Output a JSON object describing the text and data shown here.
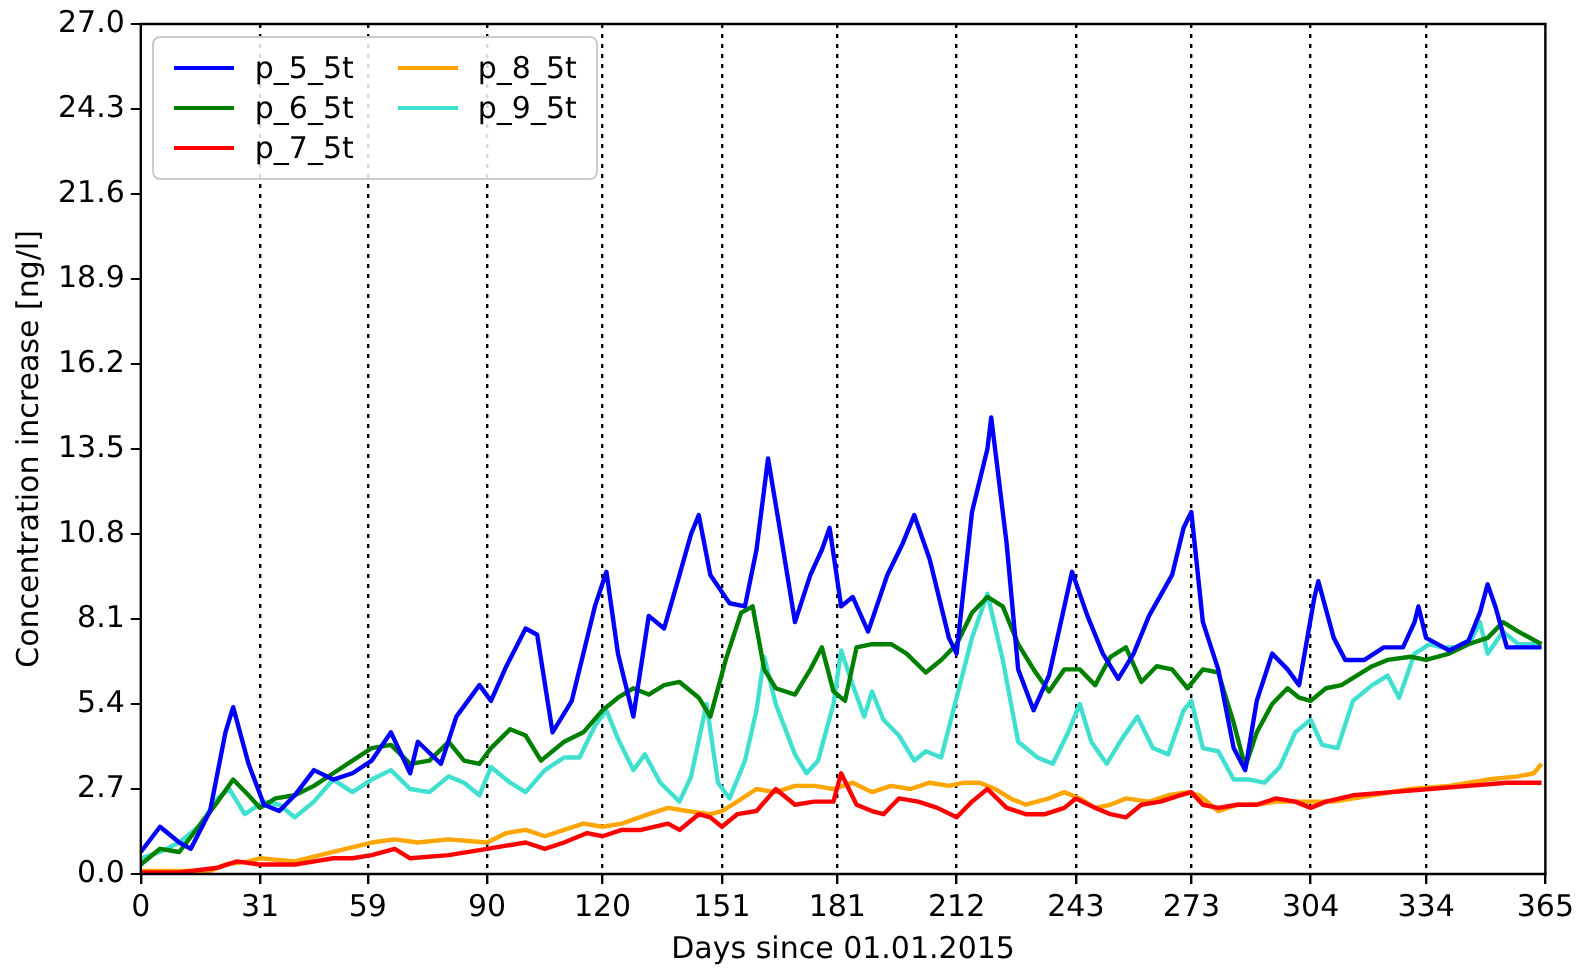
{
  "chart_data": {
    "type": "line",
    "xlabel": "Days since 01.01.2015",
    "ylabel": "Concentration increase [ng/l]",
    "xlim": [
      0,
      365
    ],
    "xticks": [
      0,
      31,
      59,
      90,
      120,
      151,
      181,
      212,
      243,
      273,
      304,
      334,
      365
    ],
    "ylim": [
      0,
      27
    ],
    "yticks": [
      {
        "value": 0,
        "label": "0.0"
      },
      {
        "value": 2.7,
        "label": "2.7"
      },
      {
        "value": 5.4,
        "label": "5.4"
      },
      {
        "value": 8.1,
        "label": "8.1"
      },
      {
        "value": 10.8,
        "label": "10.8"
      },
      {
        "value": 13.5,
        "label": "13.5"
      },
      {
        "value": 16.2,
        "label": "16.2"
      },
      {
        "value": 18.9,
        "label": "18.9"
      },
      {
        "value": 21.6,
        "label": "21.6"
      },
      {
        "value": 24.3,
        "label": "24.3"
      },
      {
        "value": 27,
        "label": "27.0"
      }
    ],
    "grid": "x",
    "legend": "top left",
    "marker": "none",
    "line_style": "solid",
    "series": [
      {
        "name": "p_5_5t",
        "color": "#0000ff",
        "x": [
          0,
          5,
          10,
          13,
          18,
          22,
          24,
          28,
          32,
          36,
          40,
          45,
          50,
          55,
          60,
          65,
          70,
          72,
          78,
          82,
          88,
          91,
          95,
          100,
          103,
          107,
          112,
          118,
          121,
          124,
          128,
          132,
          136,
          140,
          143,
          145,
          148,
          153,
          157,
          160,
          163,
          166,
          170,
          174,
          177,
          179,
          182,
          185,
          189,
          194,
          198,
          201,
          205,
          210,
          212,
          216,
          220,
          221,
          225,
          228,
          232,
          236,
          240,
          242,
          246,
          250,
          254,
          258,
          262,
          268,
          271,
          273,
          276,
          280,
          284,
          287,
          290,
          294,
          298,
          301,
          305,
          306,
          310,
          313,
          318,
          323,
          328,
          331,
          332,
          334,
          337,
          340,
          345,
          348,
          350,
          352,
          355,
          364
        ],
        "values": [
          0.7,
          1.5,
          1.0,
          0.8,
          2.0,
          4.5,
          5.3,
          3.5,
          2.2,
          2.0,
          2.5,
          3.3,
          3.0,
          3.2,
          3.6,
          4.5,
          3.2,
          4.2,
          3.5,
          5.0,
          6.0,
          5.5,
          6.6,
          7.8,
          7.6,
          4.5,
          5.5,
          8.5,
          9.6,
          7.0,
          5.0,
          8.2,
          7.8,
          9.5,
          10.8,
          11.4,
          9.5,
          8.6,
          8.5,
          10.3,
          13.2,
          11.0,
          8.0,
          9.5,
          10.3,
          11.0,
          8.5,
          8.8,
          7.7,
          9.5,
          10.5,
          11.4,
          10.0,
          7.5,
          7.0,
          11.5,
          13.5,
          14.5,
          10.5,
          6.5,
          5.2,
          6.3,
          8.5,
          9.6,
          8.2,
          7.0,
          6.2,
          7.0,
          8.2,
          9.5,
          11.0,
          11.5,
          8.0,
          6.5,
          4.0,
          3.3,
          5.5,
          7.0,
          6.5,
          6.0,
          8.8,
          9.3,
          7.5,
          6.8,
          6.8,
          7.2,
          7.2,
          8.0,
          8.5,
          7.5,
          7.3,
          7.1,
          7.4,
          8.3,
          9.2,
          8.5,
          7.2,
          7.2
        ]
      },
      {
        "name": "p_6_5t",
        "color": "#008000",
        "x": [
          0,
          5,
          10,
          15,
          20,
          24,
          28,
          31,
          35,
          40,
          45,
          50,
          55,
          60,
          65,
          70,
          75,
          80,
          84,
          88,
          91,
          96,
          100,
          104,
          110,
          115,
          120,
          124,
          128,
          132,
          136,
          140,
          145,
          148,
          152,
          156,
          159,
          162,
          165,
          170,
          174,
          177,
          180,
          183,
          186,
          190,
          195,
          199,
          204,
          208,
          212,
          216,
          220,
          224,
          228,
          232,
          236,
          240,
          244,
          248,
          252,
          256,
          260,
          264,
          268,
          272,
          276,
          280,
          284,
          287,
          290,
          294,
          298,
          301,
          304,
          308,
          312,
          316,
          320,
          324,
          330,
          334,
          340,
          345,
          350,
          354,
          358,
          364
        ],
        "values": [
          0.3,
          0.8,
          0.7,
          1.5,
          2.3,
          3.0,
          2.5,
          2.1,
          2.4,
          2.5,
          2.8,
          3.2,
          3.6,
          4.0,
          4.1,
          3.5,
          3.6,
          4.2,
          3.6,
          3.5,
          4.0,
          4.6,
          4.4,
          3.6,
          4.2,
          4.5,
          5.2,
          5.6,
          5.9,
          5.7,
          6.0,
          6.1,
          5.6,
          5.0,
          6.8,
          8.3,
          8.5,
          6.5,
          5.9,
          5.7,
          6.5,
          7.2,
          5.8,
          5.5,
          7.2,
          7.3,
          7.3,
          7.0,
          6.4,
          6.8,
          7.3,
          8.3,
          8.8,
          8.5,
          7.3,
          6.5,
          5.8,
          6.5,
          6.5,
          6.0,
          6.9,
          7.2,
          6.1,
          6.6,
          6.5,
          5.9,
          6.5,
          6.4,
          4.8,
          3.4,
          4.5,
          5.4,
          5.9,
          5.6,
          5.5,
          5.9,
          6.0,
          6.3,
          6.6,
          6.8,
          6.9,
          6.8,
          7.0,
          7.3,
          7.5,
          8.0,
          7.7,
          7.3
        ]
      },
      {
        "name": "p_7_5t",
        "color": "#ff0000",
        "x": [
          0,
          10,
          20,
          25,
          31,
          40,
          50,
          55,
          60,
          66,
          70,
          80,
          90,
          95,
          100,
          105,
          110,
          116,
          120,
          125,
          130,
          137,
          140,
          145,
          148,
          151,
          155,
          160,
          165,
          170,
          175,
          180,
          182,
          186,
          190,
          193,
          197,
          202,
          207,
          212,
          216,
          220,
          225,
          230,
          235,
          240,
          243,
          248,
          252,
          256,
          260,
          265,
          270,
          273,
          276,
          280,
          285,
          290,
          295,
          300,
          304,
          308,
          315,
          325,
          335,
          345,
          355,
          364
        ],
        "values": [
          0.05,
          0.05,
          0.2,
          0.4,
          0.3,
          0.3,
          0.5,
          0.5,
          0.6,
          0.8,
          0.5,
          0.6,
          0.8,
          0.9,
          1.0,
          0.8,
          1.0,
          1.3,
          1.2,
          1.4,
          1.4,
          1.6,
          1.4,
          1.9,
          1.8,
          1.5,
          1.9,
          2.0,
          2.7,
          2.2,
          2.3,
          2.3,
          3.2,
          2.2,
          2.0,
          1.9,
          2.4,
          2.3,
          2.1,
          1.8,
          2.3,
          2.7,
          2.1,
          1.9,
          1.9,
          2.1,
          2.4,
          2.1,
          1.9,
          1.8,
          2.2,
          2.3,
          2.5,
          2.6,
          2.2,
          2.1,
          2.2,
          2.2,
          2.4,
          2.3,
          2.1,
          2.3,
          2.5,
          2.6,
          2.7,
          2.8,
          2.9,
          2.9
        ]
      },
      {
        "name": "p_8_5t",
        "color": "#ffa500",
        "x": [
          0,
          10,
          18,
          22,
          28,
          31,
          40,
          50,
          60,
          66,
          72,
          80,
          90,
          95,
          100,
          105,
          110,
          115,
          120,
          125,
          132,
          137,
          142,
          148,
          151,
          155,
          160,
          165,
          170,
          175,
          180,
          185,
          190,
          195,
          200,
          205,
          210,
          214,
          218,
          222,
          226,
          230,
          236,
          240,
          244,
          248,
          252,
          256,
          262,
          267,
          272,
          275,
          280,
          285,
          290,
          295,
          300,
          304,
          310,
          320,
          330,
          340,
          350,
          358,
          362,
          364
        ],
        "values": [
          0.1,
          0.1,
          0.1,
          0.3,
          0.4,
          0.5,
          0.4,
          0.7,
          1.0,
          1.1,
          1.0,
          1.1,
          1.0,
          1.3,
          1.4,
          1.2,
          1.4,
          1.6,
          1.5,
          1.6,
          1.9,
          2.1,
          2.0,
          1.9,
          2.0,
          2.3,
          2.7,
          2.6,
          2.8,
          2.8,
          2.7,
          2.9,
          2.6,
          2.8,
          2.7,
          2.9,
          2.8,
          2.9,
          2.9,
          2.7,
          2.4,
          2.2,
          2.4,
          2.6,
          2.4,
          2.1,
          2.2,
          2.4,
          2.3,
          2.5,
          2.6,
          2.5,
          2.0,
          2.2,
          2.2,
          2.3,
          2.3,
          2.3,
          2.3,
          2.5,
          2.7,
          2.8,
          3.0,
          3.1,
          3.2,
          3.5
        ]
      },
      {
        "name": "p_9_5t",
        "color": "#40e0d0",
        "x": [
          0,
          5,
          10,
          15,
          20,
          23,
          27,
          32,
          36,
          40,
          45,
          50,
          55,
          60,
          65,
          70,
          75,
          80,
          84,
          88,
          91,
          96,
          100,
          105,
          110,
          114,
          118,
          121,
          124,
          128,
          131,
          135,
          140,
          143,
          147,
          150,
          153,
          157,
          160,
          162,
          165,
          170,
          173,
          176,
          180,
          182,
          185,
          188,
          190,
          193,
          197,
          201,
          204,
          208,
          212,
          216,
          220,
          224,
          228,
          233,
          237,
          241,
          244,
          247,
          251,
          255,
          259,
          263,
          267,
          271,
          273,
          276,
          280,
          284,
          288,
          292,
          296,
          300,
          304,
          307,
          311,
          315,
          320,
          324,
          327,
          331,
          335,
          338,
          342,
          346,
          348,
          350,
          354,
          358,
          364
        ],
        "values": [
          0.5,
          0.7,
          1.0,
          1.5,
          2.4,
          2.7,
          1.9,
          2.3,
          2.2,
          1.8,
          2.3,
          3.0,
          2.6,
          3.0,
          3.3,
          2.7,
          2.6,
          3.1,
          2.9,
          2.5,
          3.4,
          2.9,
          2.6,
          3.3,
          3.7,
          3.7,
          4.7,
          5.2,
          4.3,
          3.3,
          3.8,
          2.9,
          2.3,
          3.1,
          5.4,
          2.9,
          2.4,
          3.6,
          5.2,
          6.9,
          5.4,
          3.8,
          3.2,
          3.6,
          5.4,
          7.1,
          6.0,
          5.0,
          5.8,
          4.9,
          4.4,
          3.6,
          3.9,
          3.7,
          5.6,
          7.5,
          8.9,
          6.8,
          4.2,
          3.7,
          3.5,
          4.5,
          5.4,
          4.2,
          3.5,
          4.3,
          5.0,
          4.0,
          3.8,
          5.2,
          5.5,
          4.0,
          3.9,
          3.0,
          3.0,
          2.9,
          3.4,
          4.5,
          4.9,
          4.1,
          4.0,
          5.5,
          6.0,
          6.3,
          5.6,
          7.0,
          7.3,
          7.2,
          7.2,
          7.5,
          8.0,
          7.0,
          7.7,
          7.3,
          7.3
        ]
      }
    ]
  }
}
